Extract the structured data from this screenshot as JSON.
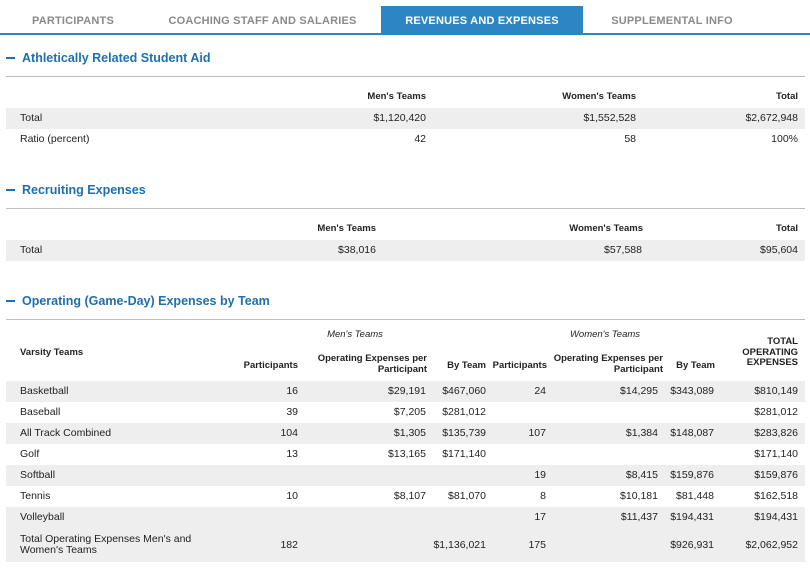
{
  "tabs": [
    "PARTICIPANTS",
    "COACHING STAFF AND SALARIES",
    "REVENUES AND EXPENSES",
    "SUPPLEMENTAL INFO"
  ],
  "aid": {
    "title": "Athletically Related Student Aid",
    "headers": {
      "men": "Men's Teams",
      "women": "Women's Teams",
      "total": "Total"
    },
    "rows": [
      {
        "label": "Total",
        "men": "$1,120,420",
        "women": "$1,552,528",
        "total": "$2,672,948"
      },
      {
        "label": "Ratio (percent)",
        "men": "42",
        "women": "58",
        "total": "100%"
      }
    ]
  },
  "recruiting": {
    "title": "Recruiting Expenses",
    "headers": {
      "men": "Men's Teams",
      "women": "Women's Teams",
      "total": "Total"
    },
    "rows": [
      {
        "label": "Total",
        "men": "$38,016",
        "women": "$57,588",
        "total": "$95,604"
      }
    ]
  },
  "operating": {
    "title": "Operating (Game-Day) Expenses by Team",
    "group_men": "Men's Teams",
    "group_women": "Women's Teams",
    "col_varsity": "Varsity Teams",
    "col_participants": "Participants",
    "col_per_participant": "Operating Expenses per Participant",
    "col_by_team": "By Team",
    "col_total": "TOTAL OPERATING EXPENSES",
    "rows": [
      {
        "team": "Basketball",
        "m_part": "16",
        "m_per": "$29,191",
        "m_team": "$467,060",
        "w_part": "24",
        "w_per": "$14,295",
        "w_team": "$343,089",
        "total": "$810,149"
      },
      {
        "team": "Baseball",
        "m_part": "39",
        "m_per": "$7,205",
        "m_team": "$281,012",
        "w_part": "",
        "w_per": "",
        "w_team": "",
        "total": "$281,012"
      },
      {
        "team": "All Track Combined",
        "m_part": "104",
        "m_per": "$1,305",
        "m_team": "$135,739",
        "w_part": "107",
        "w_per": "$1,384",
        "w_team": "$148,087",
        "total": "$283,826"
      },
      {
        "team": "Golf",
        "m_part": "13",
        "m_per": "$13,165",
        "m_team": "$171,140",
        "w_part": "",
        "w_per": "",
        "w_team": "",
        "total": "$171,140"
      },
      {
        "team": "Softball",
        "m_part": "",
        "m_per": "",
        "m_team": "",
        "w_part": "19",
        "w_per": "$8,415",
        "w_team": "$159,876",
        "total": "$159,876"
      },
      {
        "team": "Tennis",
        "m_part": "10",
        "m_per": "$8,107",
        "m_team": "$81,070",
        "w_part": "8",
        "w_per": "$10,181",
        "w_team": "$81,448",
        "total": "$162,518"
      },
      {
        "team": "Volleyball",
        "m_part": "",
        "m_per": "",
        "m_team": "",
        "w_part": "17",
        "w_per": "$11,437",
        "w_team": "$194,431",
        "total": "$194,431"
      }
    ],
    "totals": {
      "label": "Total Operating Expenses Men's and Women's Teams",
      "m_part": "182",
      "m_team": "$1,136,021",
      "w_part": "175",
      "w_team": "$926,931",
      "total": "$2,062,952"
    }
  }
}
